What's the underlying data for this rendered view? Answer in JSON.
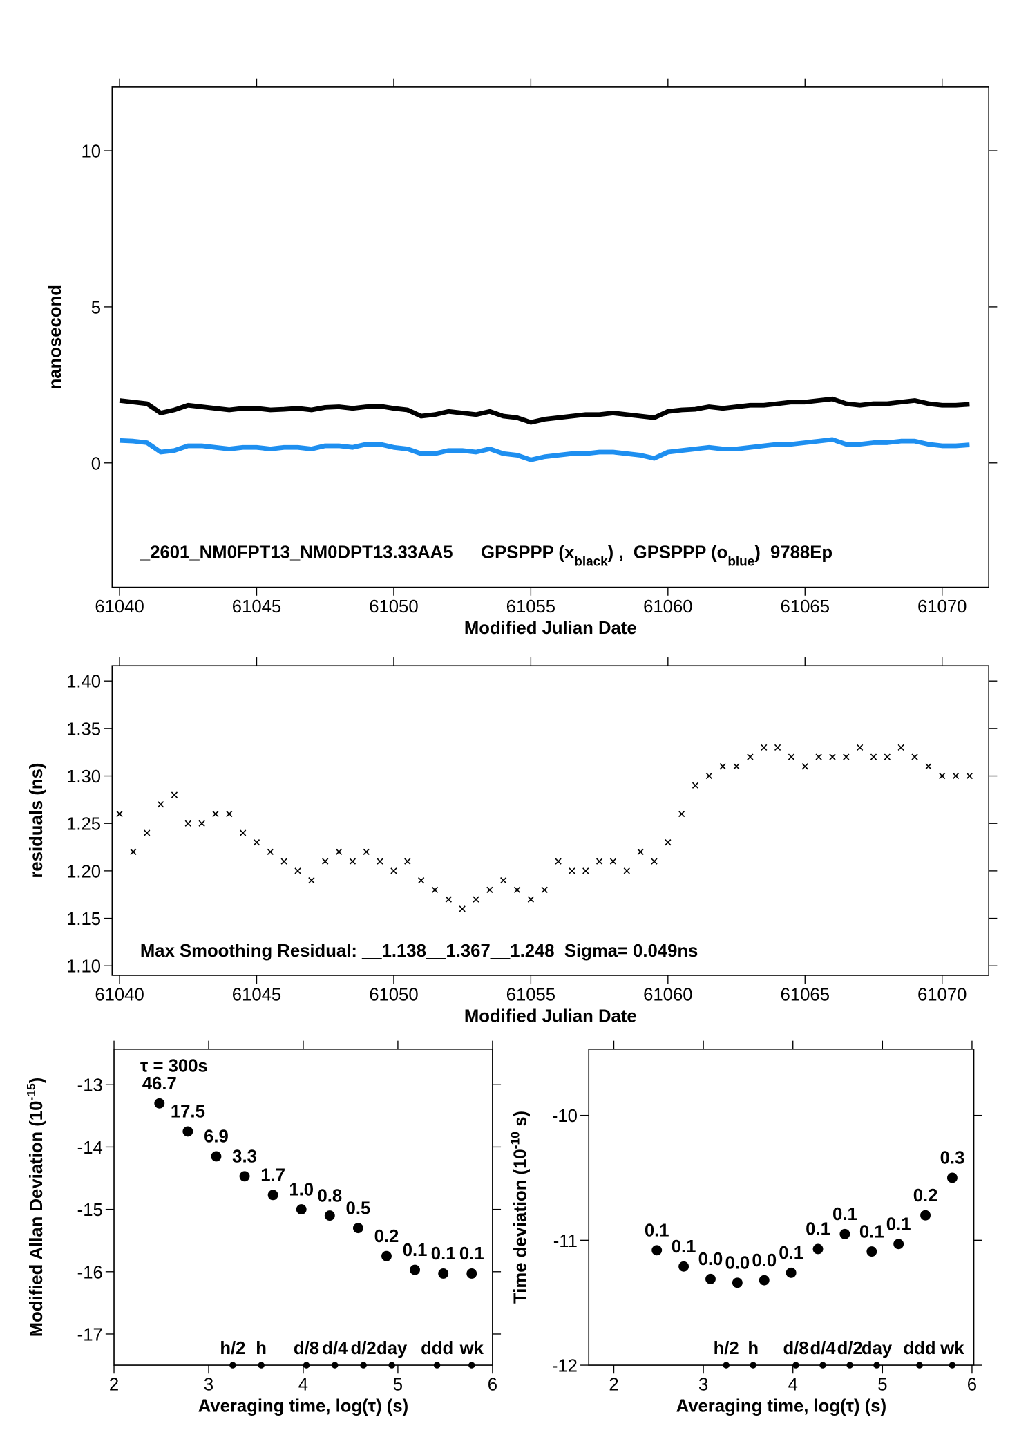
{
  "chart_data": [
    {
      "type": "line",
      "annotation": [
        "_2601_NM0FPT13_NM0DPT13.33AA5",
        "GPSPPP (x",
        "black",
        ") ,  GPSPPP (o",
        "blue",
        ")  9788Ep"
      ],
      "x_label": "Modified Julian Date",
      "y_label": [
        "nanosecond"
      ],
      "xlim": [
        61039.73,
        61071.7
      ],
      "xticks": [
        61040,
        61045,
        61050,
        61055,
        61060,
        61065,
        61070
      ],
      "ylim": [
        -3.98,
        12.04
      ],
      "yticks": [
        0,
        5,
        10
      ],
      "x": [
        61040,
        61040.5,
        61041,
        61041.5,
        61042,
        61042.5,
        61043,
        61043.5,
        61044,
        61044.5,
        61045,
        61045.5,
        61046,
        61046.5,
        61047,
        61047.5,
        61048,
        61048.5,
        61049,
        61049.5,
        61050,
        61050.5,
        61051,
        61051.5,
        61052,
        61052.5,
        61053,
        61053.5,
        61054,
        61054.5,
        61055,
        61055.5,
        61056,
        61056.5,
        61057,
        61057.5,
        61058,
        61058.5,
        61059,
        61059.5,
        61060,
        61060.5,
        61061,
        61061.5,
        61062,
        61062.5,
        61063,
        61063.5,
        61064,
        61064.5,
        61065,
        61065.5,
        61066,
        61066.5,
        61067,
        61067.5,
        61068,
        61068.5,
        61069,
        61069.5,
        61070,
        61070.5,
        61071
      ],
      "series": [
        {
          "color": "#000000",
          "values": [
            2.0,
            1.95,
            1.9,
            1.6,
            1.7,
            1.85,
            1.8,
            1.75,
            1.7,
            1.75,
            1.75,
            1.7,
            1.72,
            1.75,
            1.7,
            1.78,
            1.8,
            1.75,
            1.8,
            1.82,
            1.75,
            1.7,
            1.5,
            1.55,
            1.65,
            1.6,
            1.55,
            1.65,
            1.5,
            1.45,
            1.3,
            1.4,
            1.45,
            1.5,
            1.55,
            1.55,
            1.6,
            1.55,
            1.5,
            1.45,
            1.65,
            1.7,
            1.72,
            1.8,
            1.75,
            1.8,
            1.85,
            1.85,
            1.9,
            1.95,
            1.95,
            2.0,
            2.05,
            1.9,
            1.85,
            1.9,
            1.9,
            1.95,
            2.0,
            1.9,
            1.85,
            1.85,
            1.88
          ]
        },
        {
          "color": "#1e8ff0",
          "values": [
            0.72,
            0.7,
            0.65,
            0.35,
            0.4,
            0.55,
            0.55,
            0.5,
            0.45,
            0.5,
            0.5,
            0.45,
            0.5,
            0.5,
            0.45,
            0.55,
            0.55,
            0.5,
            0.6,
            0.6,
            0.5,
            0.45,
            0.3,
            0.3,
            0.4,
            0.4,
            0.35,
            0.45,
            0.3,
            0.25,
            0.1,
            0.2,
            0.25,
            0.3,
            0.3,
            0.35,
            0.35,
            0.3,
            0.25,
            0.15,
            0.35,
            0.4,
            0.45,
            0.5,
            0.45,
            0.45,
            0.5,
            0.55,
            0.6,
            0.6,
            0.65,
            0.7,
            0.75,
            0.6,
            0.6,
            0.65,
            0.65,
            0.7,
            0.7,
            0.6,
            0.55,
            0.55,
            0.58
          ]
        }
      ]
    },
    {
      "type": "scatter",
      "marker": "x",
      "color": "#000000",
      "annotation": "Max Smoothing Residual: __1.138__1.367__1.248  Sigma= 0.049ns",
      "x_label": "Modified Julian Date",
      "y_label": [
        "residuals (ns)"
      ],
      "xlim": [
        61039.73,
        61071.7
      ],
      "xticks": [
        61040,
        61045,
        61050,
        61055,
        61060,
        61065,
        61070
      ],
      "ylim": [
        1.09,
        1.416
      ],
      "yticks": [
        {
          "value": 1.1,
          "label": "1.10"
        },
        {
          "value": 1.15,
          "label": "1.15"
        },
        {
          "value": 1.2,
          "label": "1.20"
        },
        {
          "value": 1.25,
          "label": "1.25"
        },
        {
          "value": 1.3,
          "label": "1.30"
        },
        {
          "value": 1.35,
          "label": "1.35"
        },
        {
          "value": 1.4,
          "label": "1.40"
        }
      ],
      "x": [
        61040,
        61040.5,
        61041,
        61041.5,
        61042,
        61042.5,
        61043,
        61043.5,
        61044,
        61044.5,
        61045,
        61045.5,
        61046,
        61046.5,
        61047,
        61047.5,
        61048,
        61048.5,
        61049,
        61049.5,
        61050,
        61050.5,
        61051,
        61051.5,
        61052,
        61052.5,
        61053,
        61053.5,
        61054,
        61054.5,
        61055,
        61055.5,
        61056,
        61056.5,
        61057,
        61057.5,
        61058,
        61058.5,
        61059,
        61059.5,
        61060,
        61060.5,
        61061,
        61061.5,
        61062,
        61062.5,
        61063,
        61063.5,
        61064,
        61064.5,
        61065,
        61065.5,
        61066,
        61066.5,
        61067,
        61067.5,
        61068,
        61068.5,
        61069,
        61069.5,
        61070,
        61070.5,
        61071
      ],
      "values": [
        1.26,
        1.22,
        1.24,
        1.27,
        1.28,
        1.25,
        1.25,
        1.26,
        1.26,
        1.24,
        1.23,
        1.22,
        1.21,
        1.2,
        1.19,
        1.21,
        1.22,
        1.21,
        1.22,
        1.21,
        1.2,
        1.21,
        1.19,
        1.18,
        1.17,
        1.16,
        1.17,
        1.18,
        1.19,
        1.18,
        1.17,
        1.18,
        1.21,
        1.2,
        1.2,
        1.21,
        1.21,
        1.2,
        1.22,
        1.21,
        1.23,
        1.26,
        1.29,
        1.3,
        1.31,
        1.31,
        1.32,
        1.33,
        1.33,
        1.32,
        1.31,
        1.32,
        1.32,
        1.32,
        1.33,
        1.32,
        1.32,
        1.33,
        1.32,
        1.31,
        1.3,
        1.3,
        1.3
      ]
    },
    {
      "type": "scatter",
      "marker": "o",
      "color": "#000000",
      "label_color": "#ff0000",
      "annotation": "τ = 300s",
      "x_label": "Averaging time, log(τ) (s)",
      "y_label": [
        "Modified Allan Deviation (10",
        "-15",
        ")"
      ],
      "xlim": [
        2,
        6
      ],
      "xticks": [
        2,
        3,
        4,
        5,
        6
      ],
      "ylim": [
        -17.5,
        -12.43
      ],
      "yticks": [
        -17,
        -16,
        -15,
        -14,
        -13
      ],
      "x": [
        2.48,
        2.78,
        3.08,
        3.38,
        3.68,
        3.98,
        4.28,
        4.58,
        4.88,
        5.18,
        5.48,
        5.78
      ],
      "values": [
        -13.3,
        -13.75,
        -14.15,
        -14.47,
        -14.77,
        -15.0,
        -15.1,
        -15.3,
        -15.75,
        -15.97,
        -16.03,
        -16.03
      ],
      "error_labels": [
        "46.7",
        "17.5",
        "6.9",
        "3.3",
        "1.7",
        "1.0",
        "0.8",
        "0.5",
        "0.2",
        "0.1",
        "0.1",
        "0.1"
      ],
      "time_markers": {
        "x": [
          3.255,
          3.556,
          4.033,
          4.334,
          4.636,
          4.936,
          5.414,
          5.78
        ],
        "labels": [
          "h/2",
          "h",
          "d/8",
          "d/4",
          "d/2",
          "day",
          "ddd",
          "wk"
        ]
      }
    },
    {
      "type": "scatter",
      "marker": "o",
      "color": "#000000",
      "label_color": "#ff0000",
      "x_label": "Averaging time, log(τ) (s)",
      "y_label": [
        "Time deviation (10",
        "-10",
        " s)"
      ],
      "xlim": [
        1.72,
        6.02
      ],
      "xticks": [
        2,
        3,
        4,
        5,
        6
      ],
      "ylim": [
        -12,
        -9.47
      ],
      "yticks": [
        -12,
        -11,
        -10
      ],
      "x": [
        2.48,
        2.78,
        3.08,
        3.38,
        3.68,
        3.98,
        4.28,
        4.58,
        4.88,
        5.18,
        5.48,
        5.78
      ],
      "values": [
        -11.08,
        -11.21,
        -11.31,
        -11.34,
        -11.32,
        -11.26,
        -11.07,
        -10.95,
        -11.09,
        -11.03,
        -10.8,
        -10.5
      ],
      "error_labels": [
        "0.1",
        "0.1",
        "0.0",
        "0.0",
        "0.0",
        "0.1",
        "0.1",
        "0.1",
        "0.1",
        "0.1",
        "0.2",
        "0.3"
      ],
      "time_markers": {
        "x": [
          3.255,
          3.556,
          4.033,
          4.334,
          4.636,
          4.936,
          5.414,
          5.78
        ],
        "labels": [
          "h/2",
          "h",
          "d/8",
          "d/4",
          "d/2",
          "day",
          "ddd",
          "wk"
        ]
      }
    }
  ]
}
